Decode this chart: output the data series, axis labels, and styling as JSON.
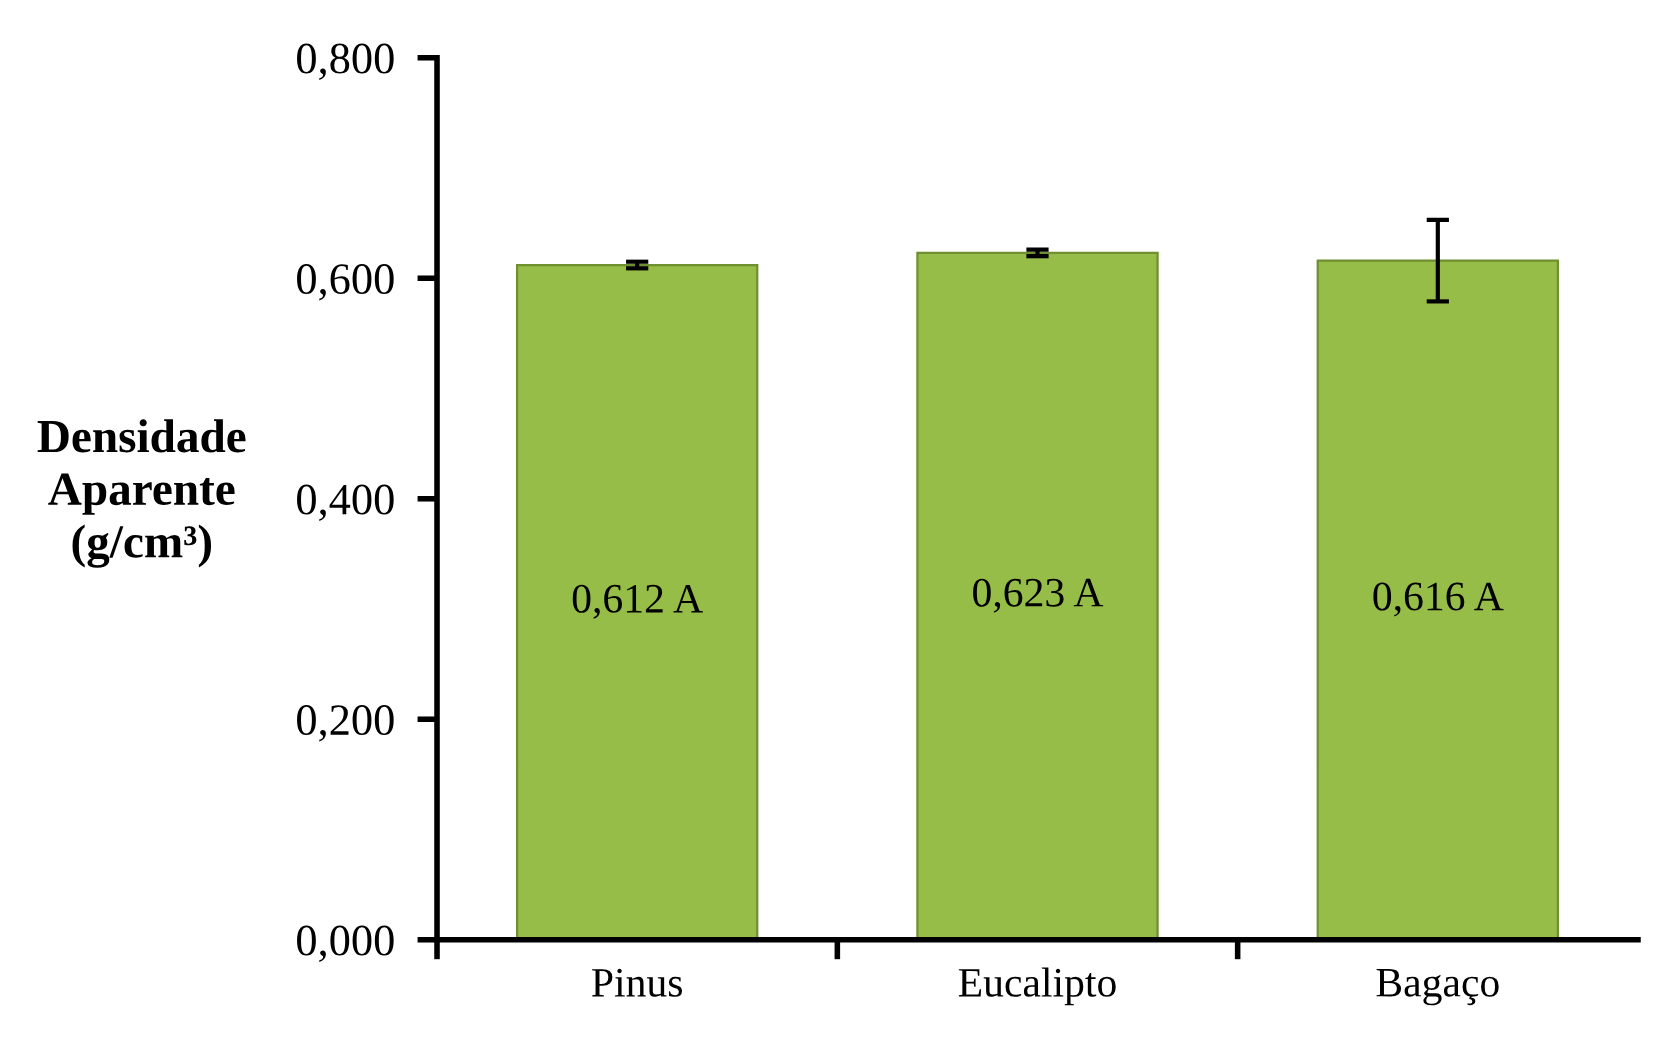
{
  "chart_data": {
    "type": "bar",
    "ylabel": "Densidade\nAparente\n(g/cm³)",
    "categories": [
      "Pinus",
      "Eucalipto",
      "Bagaço"
    ],
    "values": [
      0.612,
      0.623,
      0.616
    ],
    "errors": [
      0.003,
      0.003,
      0.037
    ],
    "value_labels": [
      "0,612 A",
      "0,623 A",
      "0,616 A"
    ],
    "color": "#95bd47",
    "ylim": [
      0,
      0.8
    ],
    "yticks": [
      {
        "value": 0,
        "label": "0,000"
      },
      {
        "value": 0.2,
        "label": "0,200"
      },
      {
        "value": 0.4,
        "label": "0,400"
      },
      {
        "value": 0.6,
        "label": "0,600"
      },
      {
        "value": 0.8,
        "label": "0,800"
      }
    ],
    "grid": false,
    "legend": false
  }
}
